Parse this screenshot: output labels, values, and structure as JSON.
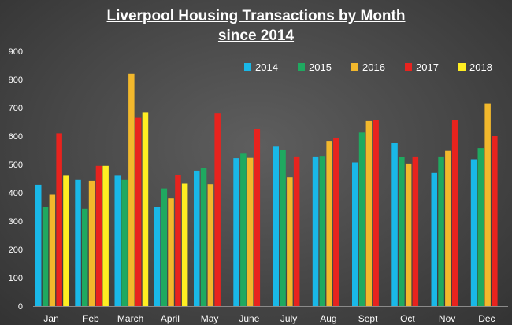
{
  "chart_data": {
    "type": "bar",
    "title_line1": "Liverpool Housing Transactions by Month",
    "title_line2": "since 2014",
    "xlabel": "",
    "ylabel": "",
    "ylim": [
      0,
      900
    ],
    "yticks": [
      0,
      100,
      200,
      300,
      400,
      500,
      600,
      700,
      800,
      900
    ],
    "grid": false,
    "legend_position": "top-right",
    "categories": [
      "Jan",
      "Feb",
      "March",
      "April",
      "May",
      "June",
      "July",
      "Aug",
      "Sept",
      "Oct",
      "Nov",
      "Dec"
    ],
    "series": [
      {
        "name": "2014",
        "color": "#19b8e8",
        "values": [
          428,
          445,
          460,
          350,
          478,
          522,
          563,
          528,
          507,
          575,
          470,
          518
        ]
      },
      {
        "name": "2015",
        "color": "#1fa960",
        "values": [
          350,
          345,
          445,
          415,
          488,
          538,
          550,
          530,
          613,
          525,
          528,
          558
        ]
      },
      {
        "name": "2016",
        "color": "#f2b82c",
        "values": [
          393,
          442,
          820,
          380,
          430,
          523,
          455,
          583,
          653,
          503,
          548,
          715
        ]
      },
      {
        "name": "2017",
        "color": "#e8231e",
        "values": [
          610,
          495,
          665,
          462,
          680,
          625,
          528,
          593,
          658,
          528,
          658,
          600
        ]
      },
      {
        "name": "2018",
        "color": "#ffee22",
        "values": [
          460,
          495,
          685,
          432,
          null,
          null,
          null,
          null,
          null,
          null,
          null,
          null
        ]
      }
    ]
  }
}
